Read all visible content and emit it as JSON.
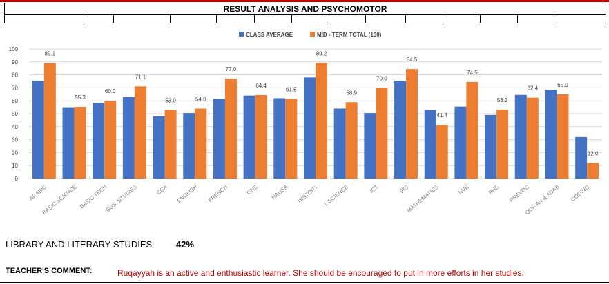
{
  "header": {
    "title": "RESULT ANALYSIS AND PSYCHOMOTOR"
  },
  "chart_data": {
    "type": "bar",
    "categories": [
      "ARABIC",
      "BASIC SCIENCE",
      "BASIC TECH",
      "BUS. STUDIES",
      "CCA",
      "ENGLISH",
      "FRENCH",
      "GNS",
      "HAUSA",
      "HISTORY",
      "I. SCIENCE",
      "ICT",
      "IRS",
      "MATHEMATICS",
      "NVE",
      "PHE",
      "PREVOC",
      "QUR'AN & ADAB",
      "CODING"
    ],
    "series": [
      {
        "name": "CLASS AVERAGE",
        "color": "#4472c4",
        "values": [
          75.5,
          55.0,
          58.5,
          63.0,
          48.0,
          50.5,
          61.5,
          64.0,
          62.0,
          78.0,
          54.0,
          50.5,
          75.5,
          53.0,
          55.5,
          49.0,
          64.5,
          68.5,
          32.0
        ]
      },
      {
        "name": "MID - TERM TOTAL  (100)",
        "color": "#ed7d31",
        "values": [
          89.1,
          55.3,
          60.0,
          71.1,
          53.0,
          54.0,
          77.0,
          64.4,
          61.5,
          89.2,
          58.9,
          70.0,
          84.5,
          41.4,
          74.5,
          53.2,
          62.4,
          65.0,
          12.0
        ]
      }
    ],
    "data_labels": [
      "89.1",
      "55.3",
      "60.0",
      "71.1",
      "53.0",
      "54.0",
      "77.0",
      "64.4",
      "61.5",
      "89.2",
      "58.9",
      "70.0",
      "84.5",
      "41.4",
      "74.5",
      "53.2",
      "62.4",
      "65.0",
      "12.0"
    ],
    "y_tick_labels": [
      "100",
      "90",
      "80",
      "70",
      "60",
      "50",
      "40",
      "30",
      "20",
      "10",
      "0"
    ],
    "ylim": [
      0,
      100
    ],
    "grid": true,
    "legend_position": "top-center"
  },
  "library": {
    "label": "LIBRARY AND LITERARY STUDIES",
    "value": "42%"
  },
  "comment": {
    "label": "TEACHER'S COMMENT:",
    "text": "Ruqayyah is an active and enthusiastic learner. She should be encouraged to put in more efforts in her studies."
  }
}
